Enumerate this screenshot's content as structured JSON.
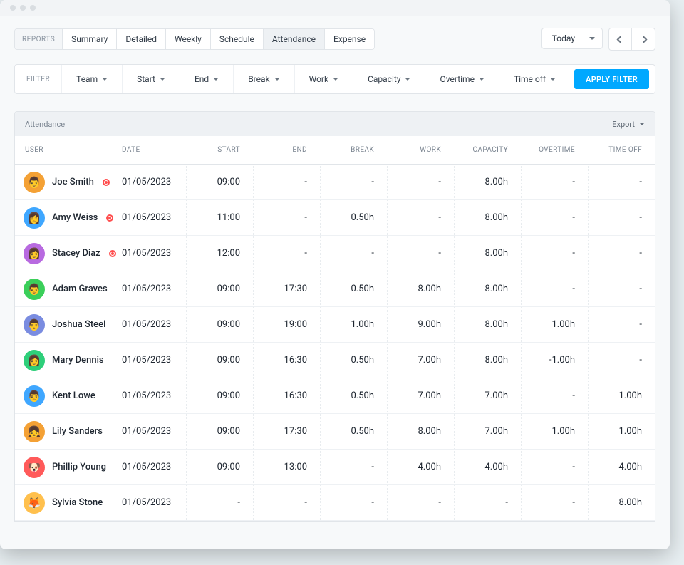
{
  "colors": {
    "page_bg": "#e8eff2",
    "window_bg": "#f7f9fa",
    "border": "#e1e5e9",
    "text": "#303a46",
    "text_muted": "#8a94a0",
    "text_head": "#7a8490",
    "primary": "#00a8ff",
    "row_divider": "#eef1f4",
    "col_divider": "#e8ecef",
    "live_dot": "#ff4d4d"
  },
  "tabs": {
    "label": "REPORTS",
    "items": [
      "Summary",
      "Detailed",
      "Weekly",
      "Schedule",
      "Attendance",
      "Expense"
    ],
    "active_index": 4
  },
  "top_right": {
    "period_label": "Today"
  },
  "filter": {
    "label": "FILTER",
    "items": [
      "Team",
      "Start",
      "End",
      "Break",
      "Work",
      "Capacity",
      "Overtime",
      "Time off"
    ],
    "apply_label": "APPLY FILTER"
  },
  "panel": {
    "title": "Attendance",
    "export_label": "Export"
  },
  "table": {
    "columns": [
      "USER",
      "DATE",
      "START",
      "END",
      "BREAK",
      "WORK",
      "CAPACITY",
      "OVERTIME",
      "TIME OFF"
    ],
    "rows": [
      {
        "user": "Joe Smith",
        "live": true,
        "avatar_bg": "#f4a135",
        "avatar_emoji": "👨",
        "date": "01/05/2023",
        "start": "09:00",
        "end": "-",
        "break": "-",
        "work": "-",
        "capacity": "8.00h",
        "overtime": "-",
        "timeoff": "-"
      },
      {
        "user": "Amy Weiss",
        "live": true,
        "avatar_bg": "#3fa7ff",
        "avatar_emoji": "👩",
        "date": "01/05/2023",
        "start": "11:00",
        "end": "-",
        "break": "0.50h",
        "work": "-",
        "capacity": "8.00h",
        "overtime": "-",
        "timeoff": "-"
      },
      {
        "user": "Stacey Diaz",
        "live": true,
        "avatar_bg": "#b86ae0",
        "avatar_emoji": "👩",
        "date": "01/05/2023",
        "start": "12:00",
        "end": "-",
        "break": "-",
        "work": "-",
        "capacity": "8.00h",
        "overtime": "-",
        "timeoff": "-"
      },
      {
        "user": "Adam Graves",
        "live": false,
        "avatar_bg": "#3bcf5a",
        "avatar_emoji": "👨",
        "date": "01/05/2023",
        "start": "09:00",
        "end": "17:30",
        "break": "0.50h",
        "work": "8.00h",
        "capacity": "8.00h",
        "overtime": "-",
        "timeoff": "-"
      },
      {
        "user": "Joshua Steel",
        "live": false,
        "avatar_bg": "#7a8ce0",
        "avatar_emoji": "👨",
        "date": "01/05/2023",
        "start": "09:00",
        "end": "19:00",
        "break": "1.00h",
        "work": "9.00h",
        "capacity": "8.00h",
        "overtime": "1.00h",
        "timeoff": "-"
      },
      {
        "user": "Mary Dennis",
        "live": false,
        "avatar_bg": "#2ecf7a",
        "avatar_emoji": "👩",
        "date": "01/05/2023",
        "start": "09:00",
        "end": "16:30",
        "break": "0.50h",
        "work": "7.00h",
        "capacity": "8.00h",
        "overtime": "-1.00h",
        "timeoff": "-"
      },
      {
        "user": "Kent Lowe",
        "live": false,
        "avatar_bg": "#3fa7ff",
        "avatar_emoji": "👨",
        "date": "01/05/2023",
        "start": "09:00",
        "end": "16:30",
        "break": "0.50h",
        "work": "7.00h",
        "capacity": "7.00h",
        "overtime": "-",
        "timeoff": "1.00h"
      },
      {
        "user": "Lily Sanders",
        "live": false,
        "avatar_bg": "#f4a135",
        "avatar_emoji": "👧",
        "date": "01/05/2023",
        "start": "09:00",
        "end": "17:30",
        "break": "0.50h",
        "work": "8.00h",
        "capacity": "7.00h",
        "overtime": "1.00h",
        "timeoff": "1.00h"
      },
      {
        "user": "Phillip Young",
        "live": false,
        "avatar_bg": "#ff5a5a",
        "avatar_emoji": "🐶",
        "date": "01/05/2023",
        "start": "09:00",
        "end": "13:00",
        "break": "-",
        "work": "4.00h",
        "capacity": "4.00h",
        "overtime": "-",
        "timeoff": "4.00h"
      },
      {
        "user": "Sylvia Stone",
        "live": false,
        "avatar_bg": "#ffc04d",
        "avatar_emoji": "🦊",
        "date": "01/05/2023",
        "start": "-",
        "end": "-",
        "break": "-",
        "work": "-",
        "capacity": "-",
        "overtime": "-",
        "timeoff": "8.00h"
      }
    ]
  }
}
